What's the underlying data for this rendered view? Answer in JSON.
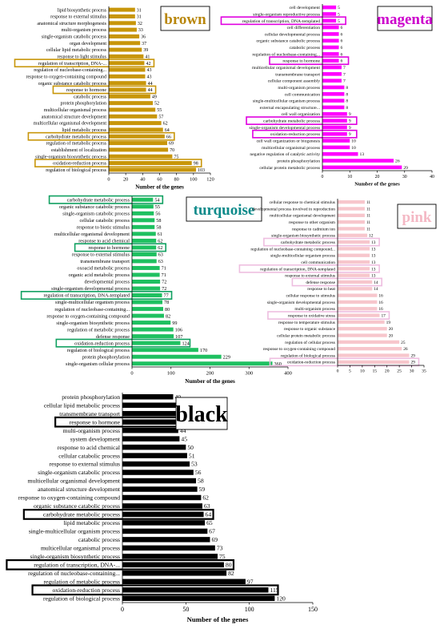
{
  "chart_data": [
    {
      "type": "bar",
      "title": "brown",
      "xlabel": "Number of the genes",
      "xlim": [
        0,
        120
      ],
      "xticks": [
        0,
        20,
        40,
        60,
        80,
        100,
        120
      ],
      "bar_color": "#c8960a",
      "title_color": "#b8860b",
      "highlight_color": "#c8960a",
      "categories": [
        "lipid biosynthetic process",
        "response to external stimulus",
        "anatomical structure morphogenesis",
        "multi-organism process",
        "single-organism catabolic process",
        "organ development",
        "cellular lipid metabolic process",
        "response to light stimulus",
        "regulation of transcription, DNA-...",
        "regulation of nucleobase-containing...",
        "response to oxygen-containing compound",
        "organic substance catabolic process",
        "response to hormone",
        "catabolic process",
        "protein phosphorylation",
        "multicellular organismal process",
        "anatomical structure development",
        "multicellular organismal development",
        "lipid metabolic process",
        "carbohydrate metabolic process",
        "regulation of metabolic process",
        "establishment of localization",
        "single-organism biosynthetic process",
        "oxidation-reduction process",
        "regulation of biological process"
      ],
      "values": [
        31,
        31,
        32,
        33,
        36,
        37,
        39,
        41,
        42,
        43,
        43,
        44,
        44,
        49,
        52,
        55,
        57,
        62,
        64,
        66,
        69,
        70,
        75,
        98,
        103
      ],
      "highlighted": [
        "regulation of transcription, DNA-...",
        "response to hormone",
        "carbohydrate metabolic process",
        "oxidation-reduction process"
      ]
    },
    {
      "type": "bar",
      "title": "magenta",
      "xlabel": "Number of the genes",
      "xlim": [
        0,
        40
      ],
      "xticks": [
        0,
        10,
        20,
        30,
        40
      ],
      "bar_color": "#ff00ff",
      "title_color": "#cc00cc",
      "highlight_color": "#e000e0",
      "categories": [
        "cell development",
        "single-organism reproductive process",
        "regulation of transcription, DNA-templated",
        "cell differentiation",
        "cellular developmental process",
        "organic substance catabolic process",
        "catabolic process",
        "regulation of nucleobase-containing...",
        "response to hormone",
        "multicellular organismal development",
        "transmembrane transport",
        "cellular component assembly",
        "multi-organism process",
        "cell communication",
        "single-multicellular organism process",
        "external encapsulating structure...",
        "cell wall organization",
        "carbohydrate metabolic process",
        "single-organism developmental process",
        "oxidation-reduction process",
        "cell wall organization or biogenesis",
        "multicellular organismal process",
        "negative regulation of catalytic activity",
        "protein phosphorylation",
        "cellular protein metabolic process"
      ],
      "values": [
        5,
        5,
        5,
        6,
        6,
        6,
        6,
        6,
        6,
        7,
        7,
        7,
        8,
        8,
        8,
        8,
        9,
        9,
        9,
        9,
        10,
        10,
        13,
        26,
        29
      ],
      "highlighted": [
        "regulation of transcription, DNA-templated",
        "response to hormone",
        "carbohydrate metabolic process",
        "oxidation-reduction process"
      ]
    },
    {
      "type": "bar",
      "title": "turquoise",
      "xlabel": "Number of the genes",
      "xlim": [
        0,
        400
      ],
      "xticks": [
        0,
        100,
        200,
        300,
        400
      ],
      "bar_color": "#1ec060",
      "title_color": "#0e8a8a",
      "highlight_color": "#10a060",
      "categories": [
        "carbohydrate metabolic process",
        "organic substance catabolic process",
        "single-organism catabolic process",
        "cellular catabolic process",
        "response to biotic stimulus",
        "multicellular organismal development",
        "response to acid chemical",
        "response to hormone",
        "response to external stimulus",
        "transmembrane transport",
        "oxoacid metabolic process",
        "organic acid metabolic process",
        "developmental process",
        "single-organism developmental process",
        "regulation of transcription, DNA-templated",
        "single-multicellular organism process",
        "regulation of nucleobase-containing...",
        "response to oxygen-containing compound",
        "single-organism biosynthetic process",
        "regulation of metabolic process",
        "defense response",
        "oxidation-reduction process",
        "regulation of biological process",
        "protein phosphorylation",
        "single-organism cellular process"
      ],
      "values": [
        54,
        55,
        56,
        58,
        58,
        61,
        62,
        62,
        63,
        63,
        71,
        71,
        72,
        72,
        77,
        78,
        80,
        82,
        99,
        106,
        107,
        124,
        170,
        229,
        360
      ],
      "highlighted": [
        "carbohydrate metabolic process",
        "response to hormone",
        "regulation of transcription, DNA-templated",
        "oxidation-reduction process"
      ]
    },
    {
      "type": "bar",
      "title": "pink",
      "xlabel": "",
      "xlim": [
        0,
        35
      ],
      "xticks": [
        0,
        5,
        10,
        15,
        20,
        25,
        30,
        35
      ],
      "bar_color": "#f7c6cc",
      "title_color": "#f4b8c4",
      "highlight_color": "#eebee0",
      "categories": [
        "cellular response to chemical stimulus",
        "developmental process involved in reproduction",
        "multicellular organismal development",
        "response to other organism",
        "response to cadmium ion",
        "single-organism biosynthetic process",
        "carbohydrate metabolic process",
        "regulation of nucleobase-containing compound...",
        "single-multicellular organism process",
        "cell communication",
        "regulation of transcription, DNA-templated",
        "response to external stimulus",
        "defense response",
        "response to heat",
        "cellular response to stimulus",
        "single-organism developmental process",
        "multi-organism process",
        "response to oxidative stress",
        "response to temperature stimulus",
        "response to organic substance",
        "cellular protein metabolic process",
        "regulation of cellular process",
        "response to oxygen-containing compound",
        "regulation of biological process",
        "oxidation-reduction process"
      ],
      "values": [
        11,
        11,
        11,
        11,
        11,
        12,
        13,
        13,
        13,
        13,
        13,
        13,
        14,
        14,
        16,
        16,
        16,
        17,
        19,
        20,
        20,
        25,
        26,
        29,
        29
      ],
      "highlighted": [
        "carbohydrate metabolic process",
        "regulation of transcription, DNA-templated",
        "defense response",
        "response to oxidative stress",
        "oxidation-reduction process"
      ]
    },
    {
      "type": "bar",
      "title": "black",
      "xlabel": "Number of the genes",
      "xlim": [
        0,
        150
      ],
      "xticks": [
        0,
        50,
        100,
        150
      ],
      "bar_color": "#000000",
      "title_color": "#000000",
      "highlight_color": "#000000",
      "categories": [
        "protein phosphorylation",
        "cellular lipid metabolic process",
        "transmembrane transport",
        "response to hormone",
        "multi-organism process",
        "system development",
        "response to acid chemical",
        "cellular catabolic process",
        "response to external stimulus",
        "single-organism catabolic process",
        "multicellular organismal development",
        "anatomical structure development",
        "response to oxygen-containing compound",
        "organic substance catabolic process",
        "carbohydrate metabolic process",
        "lipid metabolic process",
        "single-multicellular organism process",
        "catabolic process",
        "multicellular organismal process",
        "single-organism biosynthetic process",
        "regulation of transcription, DNA-...",
        "regulation of nucleobase-containing...",
        "regulation of metabolic process",
        "oxidation-reduction process",
        "regulation of biological process"
      ],
      "values": [
        40,
        42,
        42,
        42,
        44,
        45,
        50,
        51,
        53,
        56,
        58,
        59,
        62,
        63,
        64,
        65,
        67,
        69,
        73,
        75,
        80,
        82,
        97,
        115,
        120
      ],
      "highlighted": [
        "response to hormone",
        "carbohydrate metabolic process",
        "regulation of transcription, DNA-...",
        "oxidation-reduction process"
      ]
    }
  ]
}
